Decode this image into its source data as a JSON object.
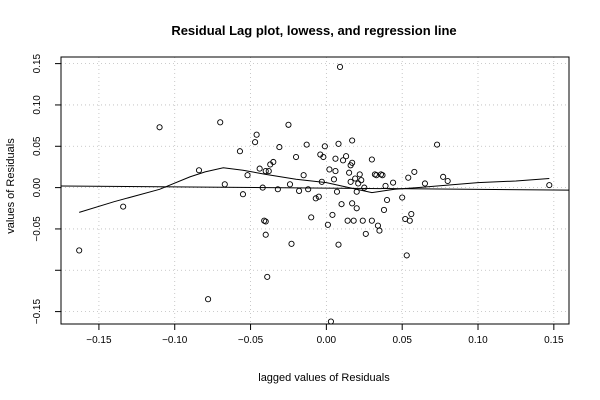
{
  "chart_data": {
    "type": "scatter",
    "title": "Residual Lag plot, lowess, and regression line",
    "xlabel": "lagged values of Residuals",
    "ylabel": "values of Residuals",
    "xlim": [
      -0.175,
      0.16
    ],
    "ylim": [
      -0.165,
      0.158
    ],
    "xticks": [
      -0.15,
      -0.1,
      -0.05,
      0.0,
      0.05,
      0.1,
      0.15
    ],
    "xtick_labels": [
      "−0.15",
      "−0.10",
      "−0.05",
      "0.00",
      "0.05",
      "0.10",
      "0.15"
    ],
    "yticks": [
      -0.15,
      -0.1,
      -0.05,
      0.0,
      0.05,
      0.1,
      0.15
    ],
    "ytick_labels": [
      "−0.15",
      "",
      "−0.05",
      "0.00",
      "0.05",
      "0.10",
      "0.15"
    ],
    "grid": true,
    "points": [
      [
        -0.163,
        -0.076
      ],
      [
        -0.134,
        -0.023
      ],
      [
        -0.11,
        0.073
      ],
      [
        -0.084,
        0.021
      ],
      [
        -0.078,
        -0.135
      ],
      [
        -0.07,
        0.079
      ],
      [
        -0.067,
        0.004
      ],
      [
        -0.057,
        0.044
      ],
      [
        -0.055,
        -0.008
      ],
      [
        -0.052,
        0.015
      ],
      [
        -0.047,
        0.055
      ],
      [
        -0.046,
        0.064
      ],
      [
        -0.044,
        0.023
      ],
      [
        -0.042,
        0.0
      ],
      [
        -0.041,
        -0.04
      ],
      [
        -0.04,
        -0.041
      ],
      [
        -0.04,
        -0.057
      ],
      [
        -0.04,
        0.02
      ],
      [
        -0.039,
        -0.108
      ],
      [
        -0.038,
        0.02
      ],
      [
        -0.037,
        0.028
      ],
      [
        -0.035,
        0.031
      ],
      [
        -0.032,
        -0.002
      ],
      [
        -0.031,
        0.049
      ],
      [
        -0.025,
        0.076
      ],
      [
        -0.024,
        0.004
      ],
      [
        -0.023,
        -0.068
      ],
      [
        -0.02,
        0.037
      ],
      [
        -0.018,
        -0.004
      ],
      [
        -0.015,
        0.015
      ],
      [
        -0.013,
        0.052
      ],
      [
        -0.012,
        -0.002
      ],
      [
        -0.01,
        -0.036
      ],
      [
        -0.007,
        -0.013
      ],
      [
        -0.005,
        -0.011
      ],
      [
        -0.004,
        0.04
      ],
      [
        -0.003,
        0.007
      ],
      [
        -0.002,
        0.037
      ],
      [
        -0.001,
        0.05
      ],
      [
        0.001,
        -0.045
      ],
      [
        0.002,
        0.022
      ],
      [
        0.003,
        -0.162
      ],
      [
        0.004,
        -0.033
      ],
      [
        0.005,
        0.01
      ],
      [
        0.006,
        0.02
      ],
      [
        0.006,
        0.035
      ],
      [
        0.007,
        -0.005
      ],
      [
        0.008,
        -0.069
      ],
      [
        0.008,
        0.053
      ],
      [
        0.009,
        0.146
      ],
      [
        0.01,
        -0.02
      ],
      [
        0.011,
        0.033
      ],
      [
        0.013,
        0.038
      ],
      [
        0.014,
        -0.04
      ],
      [
        0.015,
        0.018
      ],
      [
        0.016,
        0.027
      ],
      [
        0.016,
        0.007
      ],
      [
        0.017,
        0.057
      ],
      [
        0.017,
        -0.019
      ],
      [
        0.017,
        0.03
      ],
      [
        0.018,
        -0.04
      ],
      [
        0.019,
        0.011
      ],
      [
        0.02,
        -0.005
      ],
      [
        0.02,
        -0.025
      ],
      [
        0.021,
        0.005
      ],
      [
        0.022,
        0.016
      ],
      [
        0.023,
        0.009
      ],
      [
        0.024,
        -0.04
      ],
      [
        0.025,
        0.0
      ],
      [
        0.026,
        -0.056
      ],
      [
        0.03,
        -0.04
      ],
      [
        0.03,
        0.034
      ],
      [
        0.032,
        0.016
      ],
      [
        0.033,
        0.015
      ],
      [
        0.034,
        -0.046
      ],
      [
        0.035,
        -0.052
      ],
      [
        0.036,
        0.016
      ],
      [
        0.037,
        0.015
      ],
      [
        0.038,
        -0.027
      ],
      [
        0.039,
        0.002
      ],
      [
        0.04,
        -0.015
      ],
      [
        0.044,
        0.006
      ],
      [
        0.05,
        -0.012
      ],
      [
        0.052,
        -0.038
      ],
      [
        0.053,
        -0.082
      ],
      [
        0.054,
        0.012
      ],
      [
        0.055,
        -0.04
      ],
      [
        0.056,
        -0.032
      ],
      [
        0.058,
        0.019
      ],
      [
        0.065,
        0.005
      ],
      [
        0.073,
        0.052
      ],
      [
        0.077,
        0.013
      ],
      [
        0.08,
        0.008
      ],
      [
        0.147,
        0.003
      ]
    ],
    "lowess_line": [
      [
        -0.163,
        -0.03
      ],
      [
        -0.14,
        -0.017
      ],
      [
        -0.11,
        -0.002
      ],
      [
        -0.09,
        0.013
      ],
      [
        -0.08,
        0.019
      ],
      [
        -0.068,
        0.024
      ],
      [
        -0.055,
        0.021
      ],
      [
        -0.04,
        0.016
      ],
      [
        -0.02,
        0.01
      ],
      [
        0.0,
        0.006
      ],
      [
        0.015,
        0.0
      ],
      [
        0.03,
        -0.006
      ],
      [
        0.045,
        -0.002
      ],
      [
        0.06,
        0.0
      ],
      [
        0.08,
        0.003
      ],
      [
        0.1,
        0.006
      ],
      [
        0.125,
        0.008
      ],
      [
        0.147,
        0.011
      ]
    ],
    "regression_line": [
      [
        -0.175,
        0.002
      ],
      [
        0.16,
        -0.003
      ]
    ]
  }
}
